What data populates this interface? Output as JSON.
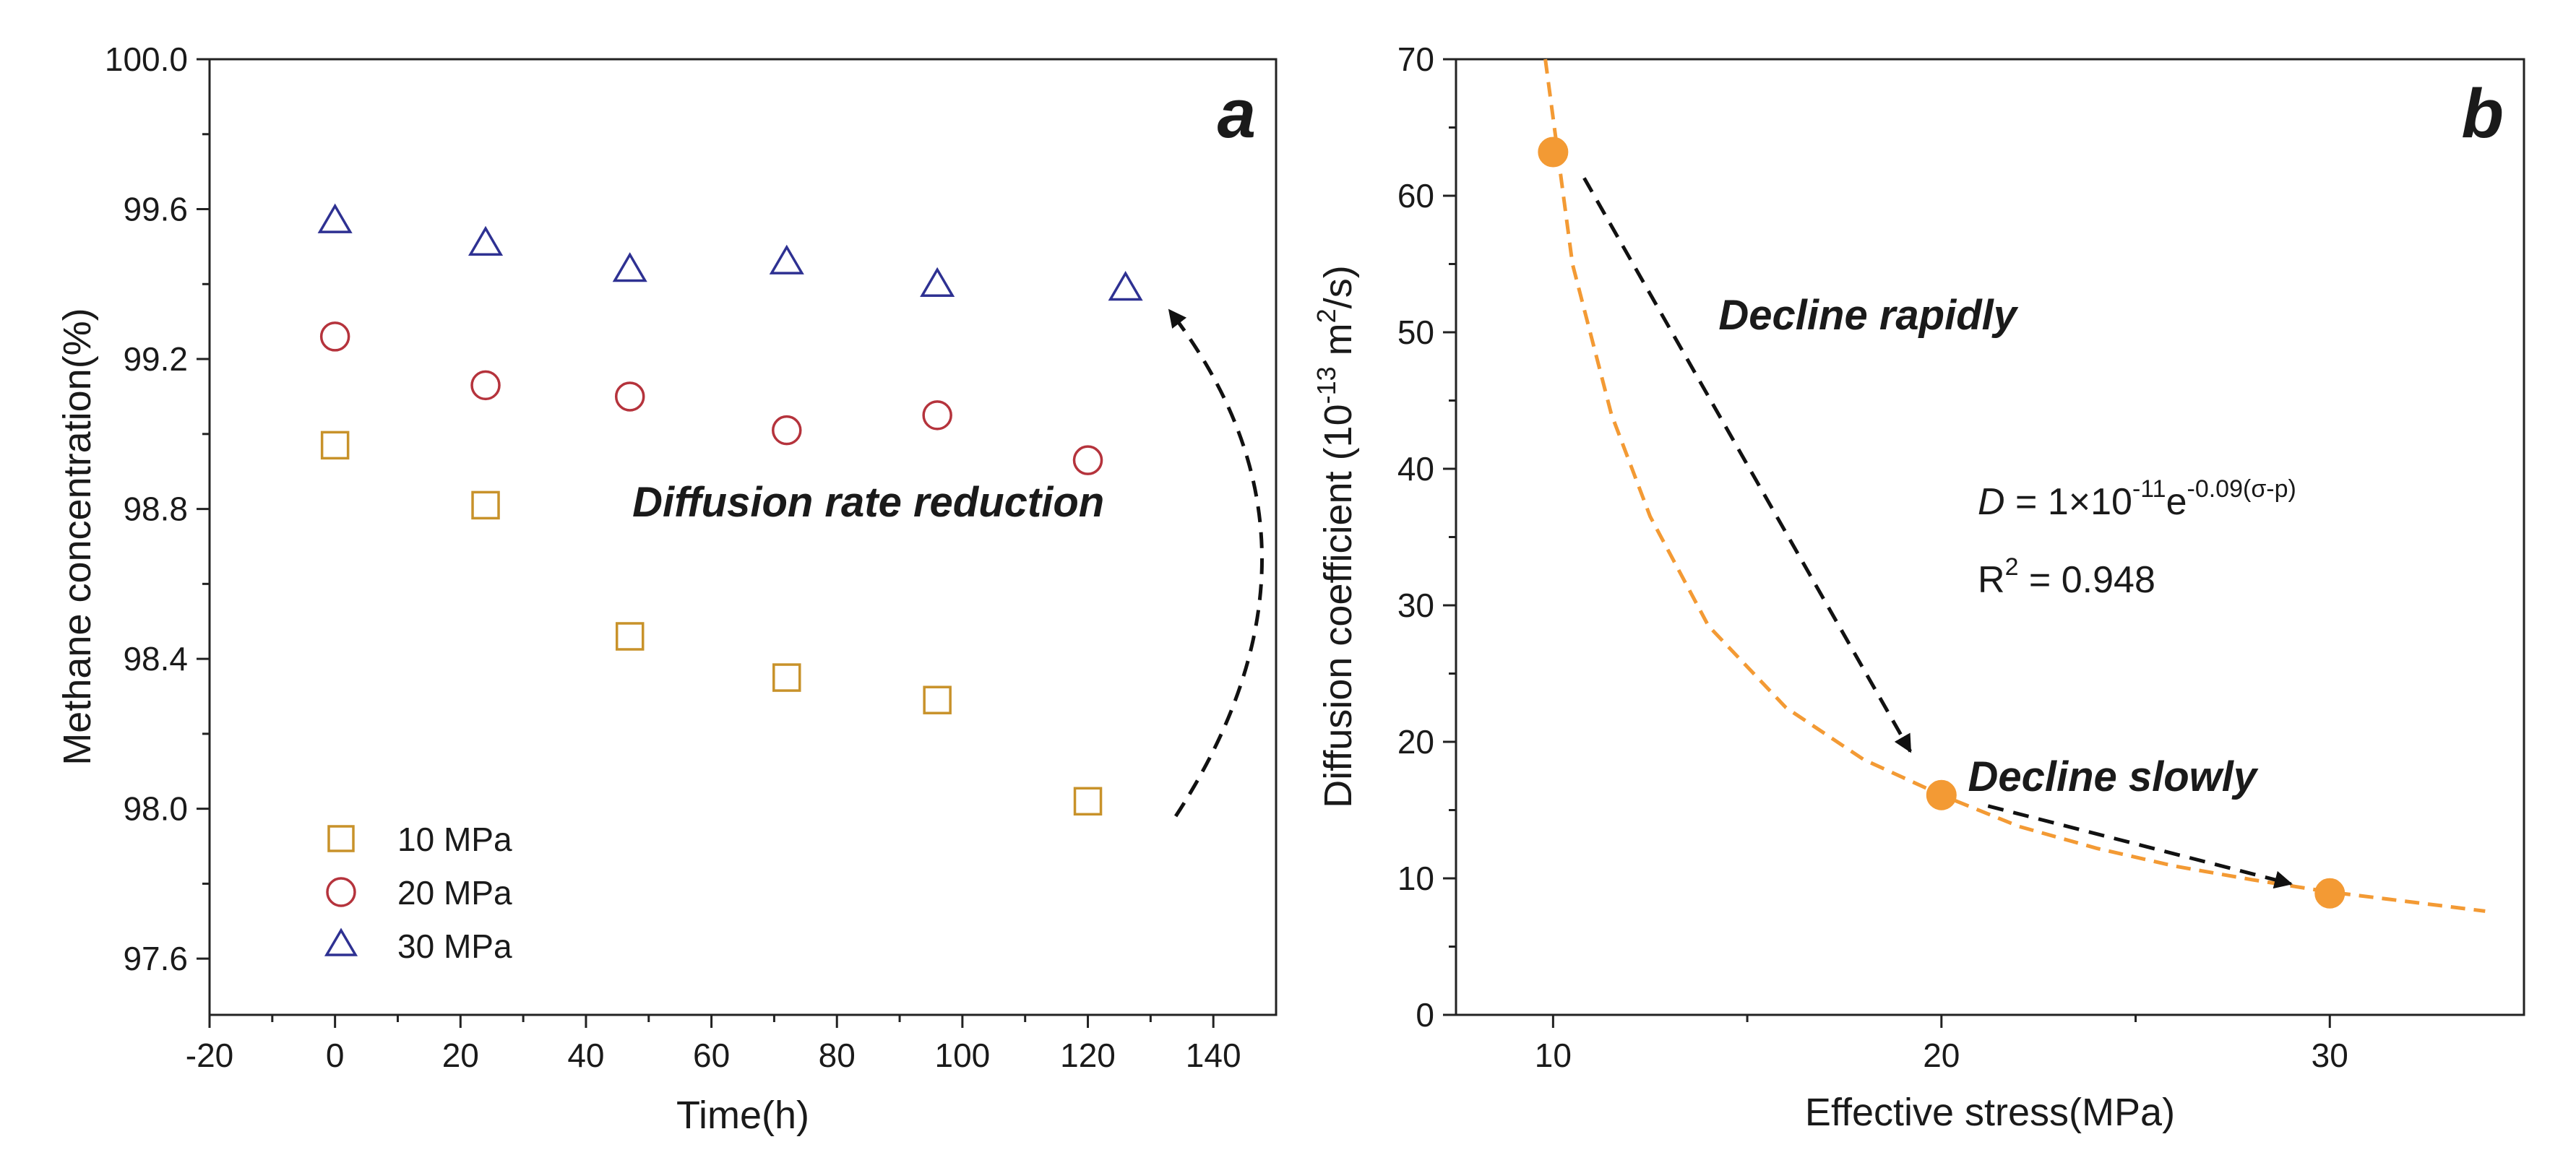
{
  "chart_data": [
    {
      "type": "scatter",
      "panel_label": "a",
      "xlabel": "Time(h)",
      "ylabel": "Methane concentration(%)",
      "xlim": [
        -20,
        150
      ],
      "ylim": [
        97.45,
        100.0
      ],
      "xticks": [
        -20,
        0,
        20,
        40,
        60,
        80,
        100,
        120,
        140
      ],
      "xtick_labels": [
        "-20",
        "0",
        "20",
        "40",
        "60",
        "80",
        "100",
        "120",
        "140"
      ],
      "yticks": [
        97.6,
        98.0,
        98.4,
        98.8,
        99.2,
        99.6,
        100.0
      ],
      "ytick_labels": [
        "97.6",
        "98.0",
        "98.4",
        "98.8",
        "99.2",
        "99.6",
        "100.0"
      ],
      "series": [
        {
          "name": "10 MPa",
          "marker": "square",
          "color": "#c8922a",
          "x": [
            0,
            24,
            47,
            72,
            96,
            120
          ],
          "y": [
            98.97,
            98.81,
            98.46,
            98.35,
            98.29,
            98.02
          ]
        },
        {
          "name": "20 MPa",
          "marker": "circle",
          "color": "#b5333c",
          "x": [
            0,
            24,
            47,
            72,
            96,
            120
          ],
          "y": [
            99.26,
            99.13,
            99.1,
            99.01,
            99.05,
            98.93
          ]
        },
        {
          "name": "30 MPa",
          "marker": "triangle",
          "color": "#2e3192",
          "x": [
            0,
            24,
            47,
            72,
            96,
            126
          ],
          "y": [
            99.57,
            99.51,
            99.44,
            99.46,
            99.4,
            99.39
          ]
        }
      ],
      "annotations": [
        {
          "text": "Diffusion rate reduction",
          "x": 85,
          "y": 98.78
        }
      ],
      "arrow": {
        "from": [
          134,
          97.98
        ],
        "control": [
          162,
          98.7
        ],
        "to": [
          133,
          99.33
        ]
      }
    },
    {
      "type": "scatter",
      "panel_label": "b",
      "xlabel": "Effective stress(MPa)",
      "ylabel_parts": [
        "Diffusion coefficient (10",
        "-13",
        " m",
        "2",
        "/s)"
      ],
      "xlim": [
        7.5,
        35.0
      ],
      "ylim": [
        0,
        70
      ],
      "xticks": [
        10,
        20,
        30
      ],
      "xtick_labels": [
        "10",
        "20",
        "30"
      ],
      "yticks": [
        0,
        10,
        20,
        30,
        40,
        50,
        60,
        70
      ],
      "ytick_labels": [
        "0",
        "10",
        "20",
        "30",
        "40",
        "50",
        "60",
        "70"
      ],
      "points": {
        "color": "#f39a34",
        "x": [
          10,
          20,
          30
        ],
        "y": [
          63.2,
          16.1,
          8.9
        ]
      },
      "fit": {
        "color": "#f39a34",
        "x": [
          9.8,
          10.5,
          11.5,
          12.5,
          14,
          16,
          18,
          20,
          22,
          24,
          26,
          28,
          30,
          32,
          34
        ],
        "y": [
          70.0,
          55.0,
          44.0,
          36.5,
          28.5,
          22.5,
          18.7,
          16.1,
          13.8,
          12.2,
          10.9,
          9.9,
          9.0,
          8.3,
          7.6
        ]
      },
      "equation": {
        "lhs": "D",
        "rhs": " = 1×10",
        "exp1": "-11",
        "mid": "e",
        "exp2": "-0.09(σ-p)",
        "r2_prefix": "R",
        "r2_sup": "2",
        "r2_value": " = 0.948"
      },
      "annotations": [
        {
          "text": "Decline rapidly",
          "x": 18.1,
          "y": 50.2
        },
        {
          "text": "Decline slowly",
          "x": 24.4,
          "y": 16.4
        }
      ],
      "arrows": [
        {
          "from": [
            10.8,
            61.3
          ],
          "to": [
            19.2,
            19.3
          ]
        },
        {
          "from": [
            21.2,
            15.3
          ],
          "to": [
            29.0,
            9.6
          ]
        }
      ]
    }
  ],
  "legend": {
    "items": [
      {
        "label": "10 MPa",
        "marker": "square",
        "color": "#c8922a"
      },
      {
        "label": "20 MPa",
        "marker": "circle",
        "color": "#b5333c"
      },
      {
        "label": "30 MPa",
        "marker": "triangle",
        "color": "#2e3192"
      }
    ],
    "position": "bottom-left"
  }
}
